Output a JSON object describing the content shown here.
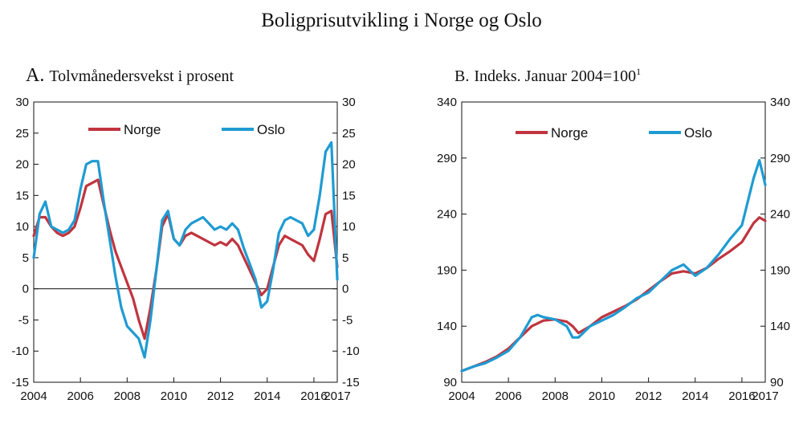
{
  "title": "Boligprisutvikling i Norge og Oslo",
  "colors": {
    "norge": "#c0343f",
    "oslo": "#1f9bd2",
    "axis": "#111111"
  },
  "chart_data": [
    {
      "type": "line",
      "panel_letter": "A.",
      "title": "Tolvmånedersvekst i prosent",
      "xlim": [
        2004,
        2017
      ],
      "ylim": [
        -15,
        30
      ],
      "x_ticks": [
        2004,
        2006,
        2008,
        2010,
        2012,
        2014,
        2016,
        2017
      ],
      "x_tick_labels": [
        "2004",
        "2006",
        "2008",
        "2010",
        "2012",
        "2014",
        "2016",
        "2017"
      ],
      "y_ticks": [
        -15,
        -10,
        -5,
        0,
        5,
        10,
        15,
        20,
        25,
        30
      ],
      "y_tick_labels": [
        "-15",
        "-10",
        "-5",
        "0",
        "5",
        "10",
        "15",
        "20",
        "25",
        "30"
      ],
      "zero_line": true,
      "legend": [
        "Norge",
        "Oslo"
      ],
      "series": [
        {
          "name": "Norge",
          "color_key": "norge",
          "x": [
            2004.0,
            2004.25,
            2004.5,
            2004.75,
            2005.0,
            2005.25,
            2005.5,
            2005.75,
            2006.0,
            2006.25,
            2006.5,
            2006.75,
            2007.0,
            2007.25,
            2007.5,
            2007.75,
            2008.0,
            2008.25,
            2008.5,
            2008.75,
            2009.0,
            2009.25,
            2009.5,
            2009.75,
            2010.0,
            2010.25,
            2010.5,
            2010.75,
            2011.0,
            2011.25,
            2011.5,
            2011.75,
            2012.0,
            2012.25,
            2012.5,
            2012.75,
            2013.0,
            2013.25,
            2013.5,
            2013.75,
            2014.0,
            2014.25,
            2014.5,
            2014.75,
            2015.0,
            2015.25,
            2015.5,
            2015.75,
            2016.0,
            2016.25,
            2016.5,
            2016.75,
            2017.0
          ],
          "values": [
            8.5,
            11.5,
            11.5,
            10.0,
            9.0,
            8.5,
            9.0,
            10.0,
            13.0,
            16.5,
            17.0,
            17.5,
            13.5,
            9.5,
            6.0,
            3.5,
            1.0,
            -1.5,
            -5.0,
            -8.0,
            -3.0,
            3.0,
            10.0,
            12.0,
            8.0,
            7.0,
            8.5,
            9.0,
            8.5,
            8.0,
            7.5,
            7.0,
            7.5,
            7.0,
            8.0,
            7.0,
            5.0,
            3.0,
            1.0,
            -1.0,
            0.0,
            3.5,
            7.0,
            8.5,
            8.0,
            7.5,
            7.0,
            5.5,
            4.5,
            8.0,
            12.0,
            12.5,
            3.5
          ]
        },
        {
          "name": "Oslo",
          "color_key": "oslo",
          "x": [
            2004.0,
            2004.25,
            2004.5,
            2004.75,
            2005.0,
            2005.25,
            2005.5,
            2005.75,
            2006.0,
            2006.25,
            2006.5,
            2006.75,
            2007.0,
            2007.25,
            2007.5,
            2007.75,
            2008.0,
            2008.25,
            2008.5,
            2008.75,
            2009.0,
            2009.25,
            2009.5,
            2009.75,
            2010.0,
            2010.25,
            2010.5,
            2010.75,
            2011.0,
            2011.25,
            2011.5,
            2011.75,
            2012.0,
            2012.25,
            2012.5,
            2012.75,
            2013.0,
            2013.25,
            2013.5,
            2013.75,
            2014.0,
            2014.25,
            2014.5,
            2014.75,
            2015.0,
            2015.25,
            2015.5,
            2015.75,
            2016.0,
            2016.25,
            2016.5,
            2016.75,
            2017.0
          ],
          "values": [
            5.0,
            12.0,
            14.0,
            10.0,
            9.5,
            9.0,
            9.5,
            11.0,
            16.0,
            20.0,
            20.5,
            20.5,
            14.0,
            8.0,
            2.0,
            -3.0,
            -6.0,
            -7.0,
            -8.0,
            -11.0,
            -5.0,
            3.0,
            11.0,
            12.5,
            8.0,
            7.0,
            9.5,
            10.5,
            11.0,
            11.5,
            10.5,
            9.5,
            10.0,
            9.5,
            10.5,
            9.5,
            6.5,
            4.0,
            1.5,
            -3.0,
            -2.0,
            3.0,
            9.0,
            11.0,
            11.5,
            11.0,
            10.5,
            8.5,
            9.5,
            15.0,
            22.0,
            23.5,
            1.5
          ]
        }
      ]
    },
    {
      "type": "line",
      "panel_letter": "B.",
      "title": "Indeks. Januar 2004=100",
      "title_sup": "1",
      "xlim": [
        2004,
        2017
      ],
      "ylim": [
        90,
        340
      ],
      "y_label_min": 90,
      "x_ticks": [
        2004,
        2006,
        2008,
        2010,
        2012,
        2014,
        2016,
        2017
      ],
      "x_tick_labels": [
        "2004",
        "2006",
        "2008",
        "2010",
        "2012",
        "2014",
        "2016",
        "2017"
      ],
      "y_ticks": [
        90,
        140,
        190,
        240,
        290,
        340
      ],
      "y_tick_labels": [
        "90",
        "140",
        "190",
        "240",
        "290",
        "340"
      ],
      "legend": [
        "Norge",
        "Oslo"
      ],
      "series": [
        {
          "name": "Norge",
          "color_key": "norge",
          "x": [
            2004.0,
            2004.5,
            2005.0,
            2005.5,
            2006.0,
            2006.5,
            2007.0,
            2007.5,
            2008.0,
            2008.5,
            2008.75,
            2009.0,
            2009.5,
            2010.0,
            2010.5,
            2011.0,
            2011.5,
            2012.0,
            2012.5,
            2013.0,
            2013.5,
            2014.0,
            2014.5,
            2015.0,
            2015.5,
            2016.0,
            2016.5,
            2016.75,
            2017.0
          ],
          "values": [
            100,
            104,
            108,
            113,
            120,
            130,
            140,
            145,
            146,
            144,
            140,
            134,
            140,
            148,
            153,
            158,
            164,
            172,
            180,
            187,
            189,
            187,
            192,
            200,
            207,
            215,
            232,
            237,
            234
          ]
        },
        {
          "name": "Oslo",
          "color_key": "oslo",
          "x": [
            2004.0,
            2004.5,
            2005.0,
            2005.5,
            2006.0,
            2006.5,
            2007.0,
            2007.25,
            2007.5,
            2008.0,
            2008.5,
            2008.75,
            2009.0,
            2009.5,
            2010.0,
            2010.5,
            2011.0,
            2011.5,
            2012.0,
            2012.5,
            2013.0,
            2013.5,
            2014.0,
            2014.5,
            2015.0,
            2015.5,
            2016.0,
            2016.5,
            2016.75,
            2016.9,
            2017.0
          ],
          "values": [
            100,
            104,
            107,
            112,
            118,
            130,
            148,
            150,
            148,
            146,
            140,
            130,
            130,
            140,
            145,
            150,
            157,
            165,
            170,
            180,
            190,
            195,
            185,
            192,
            204,
            218,
            230,
            272,
            288,
            275,
            266
          ]
        }
      ]
    }
  ]
}
